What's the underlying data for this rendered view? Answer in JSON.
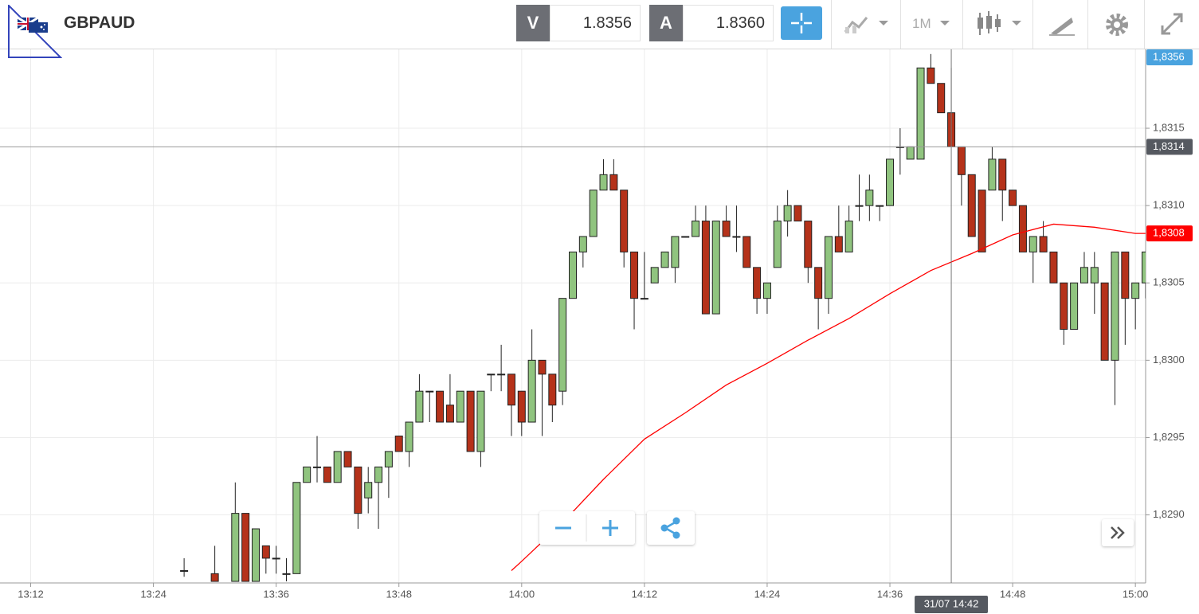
{
  "header": {
    "symbol": "GBPAUD",
    "bid_label": "V",
    "bid": "1.8356",
    "ask_label": "A",
    "ask": "1.8360",
    "timeframe": "1M"
  },
  "chart_data": {
    "type": "candlestick",
    "x": [
      "13:27",
      "13:30",
      "13:32",
      "13:33",
      "13:34",
      "13:35",
      "13:36",
      "13:37",
      "13:38",
      "13:39",
      "13:40",
      "13:41",
      "13:42",
      "13:43",
      "13:44",
      "13:45",
      "13:46",
      "13:47",
      "13:48",
      "13:49",
      "13:50",
      "13:51",
      "13:52",
      "13:53",
      "13:54",
      "13:55",
      "13:56",
      "13:57",
      "13:58",
      "13:59",
      "14:00",
      "14:01",
      "14:02",
      "14:03",
      "14:04",
      "14:05",
      "14:06",
      "14:07",
      "14:08",
      "14:09",
      "14:10",
      "14:11",
      "14:12",
      "14:13",
      "14:14",
      "14:15",
      "14:16",
      "14:17",
      "14:18",
      "14:19",
      "14:20",
      "14:21",
      "14:22",
      "14:23",
      "14:24",
      "14:25",
      "14:26",
      "14:27",
      "14:28",
      "14:29",
      "14:30",
      "14:31",
      "14:32",
      "14:33",
      "14:34",
      "14:35",
      "14:36",
      "14:37",
      "14:38",
      "14:39",
      "14:40",
      "14:41",
      "14:42",
      "14:43",
      "14:44",
      "14:45",
      "14:46",
      "14:47",
      "14:48",
      "14:49",
      "14:50",
      "14:51",
      "14:52",
      "14:53",
      "14:54",
      "14:55",
      "14:56",
      "14:57",
      "14:58",
      "14:59",
      "15:00",
      "15:01"
    ],
    "open": [
      1.82864,
      1.82862,
      1.82857,
      1.82901,
      1.82857,
      1.8288,
      1.82872,
      1.82862,
      1.82862,
      1.82921,
      1.82931,
      1.82931,
      1.82921,
      1.82941,
      1.82931,
      1.82911,
      1.82921,
      1.82931,
      1.82951,
      1.82941,
      1.8296,
      1.8298,
      1.8298,
      1.82971,
      1.8296,
      1.8298,
      1.82941,
      1.82991,
      1.82991,
      1.82991,
      1.8298,
      1.8296,
      1.83,
      1.82991,
      1.8298,
      1.8304,
      1.8307,
      1.8308,
      1.8311,
      1.8312,
      1.8311,
      1.8307,
      1.8304,
      1.8305,
      1.8306,
      1.8306,
      1.8308,
      1.8308,
      1.8309,
      1.8303,
      1.8309,
      1.8308,
      1.8308,
      1.8306,
      1.8304,
      1.8306,
      1.8309,
      1.831,
      1.8309,
      1.8306,
      1.8304,
      1.8308,
      1.8307,
      1.831,
      1.831,
      1.831,
      1.831,
      1.83138,
      1.8313,
      1.8313,
      1.83189,
      1.83179,
      1.8316,
      1.83138,
      1.8312,
      1.8311,
      1.8311,
      1.8313,
      1.8311,
      1.831,
      1.8307,
      1.8308,
      1.8307,
      1.8305,
      1.8302,
      1.8305,
      1.8305,
      1.8305,
      1.83,
      1.8307,
      1.8304,
      1.8305
    ],
    "high": [
      1.82872,
      1.8288,
      1.82921,
      1.82901,
      1.82891,
      1.8288,
      1.8288,
      1.82872,
      1.82921,
      1.82931,
      1.82951,
      1.82931,
      1.82941,
      1.82941,
      1.82931,
      1.82931,
      1.82931,
      1.82941,
      1.82951,
      1.8296,
      1.82991,
      1.8298,
      1.8298,
      1.82991,
      1.8298,
      1.8298,
      1.8298,
      1.82991,
      1.8301,
      1.82991,
      1.8298,
      1.8302,
      1.83,
      1.82991,
      1.8304,
      1.8307,
      1.8308,
      1.8311,
      1.8313,
      1.8313,
      1.8311,
      1.8307,
      1.8307,
      1.8306,
      1.8307,
      1.8308,
      1.8308,
      1.831,
      1.831,
      1.8309,
      1.831,
      1.831,
      1.8308,
      1.8306,
      1.8305,
      1.831,
      1.8311,
      1.831,
      1.8309,
      1.8306,
      1.8308,
      1.831,
      1.831,
      1.8312,
      1.8312,
      1.831,
      1.8313,
      1.8315,
      1.83138,
      1.83189,
      1.83198,
      1.83179,
      1.83189,
      1.83138,
      1.8312,
      1.8311,
      1.83138,
      1.8313,
      1.8311,
      1.831,
      1.8308,
      1.8309,
      1.8307,
      1.8305,
      1.8305,
      1.8307,
      1.8307,
      1.8305,
      1.8307,
      1.8307,
      1.8305,
      1.8307
    ],
    "low": [
      1.8286,
      1.82857,
      1.82857,
      1.82857,
      1.82857,
      1.82862,
      1.82862,
      1.82857,
      1.82862,
      1.82921,
      1.82921,
      1.82921,
      1.82921,
      1.82931,
      1.82891,
      1.82901,
      1.82891,
      1.82911,
      1.82941,
      1.82931,
      1.8296,
      1.8296,
      1.8296,
      1.8296,
      1.8296,
      1.82941,
      1.82931,
      1.8298,
      1.8298,
      1.82951,
      1.82951,
      1.8296,
      1.82951,
      1.8296,
      1.82971,
      1.8304,
      1.8306,
      1.8308,
      1.8311,
      1.8311,
      1.8306,
      1.8302,
      1.8304,
      1.8305,
      1.8306,
      1.8305,
      1.8308,
      1.8308,
      1.8303,
      1.8303,
      1.8308,
      1.8307,
      1.8306,
      1.8303,
      1.8303,
      1.8306,
      1.8308,
      1.8309,
      1.8305,
      1.8302,
      1.8303,
      1.8307,
      1.8307,
      1.8309,
      1.8309,
      1.8309,
      1.831,
      1.8312,
      1.8313,
      1.8313,
      1.83179,
      1.8316,
      1.83138,
      1.831,
      1.8308,
      1.8307,
      1.8311,
      1.8309,
      1.831,
      1.8307,
      1.8305,
      1.8307,
      1.8305,
      1.8301,
      1.8302,
      1.8305,
      1.8303,
      1.83,
      1.82971,
      1.8301,
      1.8302,
      1.8304
    ],
    "close": [
      1.82864,
      1.82857,
      1.82901,
      1.82857,
      1.82891,
      1.82872,
      1.82872,
      1.82862,
      1.82921,
      1.82931,
      1.82931,
      1.82921,
      1.82941,
      1.82931,
      1.82901,
      1.82921,
      1.82931,
      1.82941,
      1.82941,
      1.8296,
      1.8298,
      1.8298,
      1.8296,
      1.8296,
      1.8298,
      1.82941,
      1.8298,
      1.82991,
      1.82991,
      1.82971,
      1.8296,
      1.83,
      1.82991,
      1.82971,
      1.8304,
      1.8307,
      1.8308,
      1.8311,
      1.8312,
      1.8311,
      1.8307,
      1.8304,
      1.8304,
      1.8306,
      1.8307,
      1.8308,
      1.8308,
      1.8309,
      1.8303,
      1.8309,
      1.8308,
      1.8308,
      1.8306,
      1.8304,
      1.8305,
      1.8309,
      1.831,
      1.8309,
      1.8306,
      1.8304,
      1.8308,
      1.8307,
      1.8309,
      1.831,
      1.8311,
      1.831,
      1.8313,
      1.83138,
      1.83138,
      1.83189,
      1.83179,
      1.8316,
      1.83138,
      1.8312,
      1.8308,
      1.8307,
      1.8313,
      1.8311,
      1.831,
      1.8307,
      1.8308,
      1.8307,
      1.8305,
      1.8302,
      1.8305,
      1.8306,
      1.8306,
      1.83,
      1.8307,
      1.8304,
      1.8305,
      1.8307
    ],
    "up_color": "#90c47f",
    "down_color": "#b5321a",
    "overlay": {
      "type": "line",
      "color": "#ff0000",
      "x": [
        "13:59",
        "14:00",
        "14:04",
        "14:08",
        "14:12",
        "14:16",
        "14:20",
        "14:24",
        "14:28",
        "14:32",
        "14:36",
        "14:40",
        "14:44",
        "14:48",
        "14:52",
        "14:56",
        "15:00",
        "15:01"
      ],
      "values": [
        1.82864,
        1.8287,
        1.82895,
        1.82923,
        1.82949,
        1.82966,
        1.82984,
        1.82998,
        1.83013,
        1.83027,
        1.83043,
        1.83058,
        1.83069,
        1.83081,
        1.83088,
        1.83086,
        1.83082,
        1.83082
      ]
    },
    "xlim": [
      "13:09",
      "15:01"
    ],
    "xticks": [
      "13:12",
      "13:24",
      "13:36",
      "13:48",
      "14:00",
      "14:12",
      "14:24",
      "14:36",
      "14:48",
      "15:00"
    ],
    "ylim": [
      1.82856,
      1.83201
    ],
    "yticks": [
      {
        "value": 1.829,
        "label": "1,8290"
      },
      {
        "value": 1.8295,
        "label": "1,8295"
      },
      {
        "value": 1.83,
        "label": "1,8300"
      },
      {
        "value": 1.8305,
        "label": "1,8305"
      },
      {
        "value": 1.831,
        "label": "1,8310"
      },
      {
        "value": 1.8315,
        "label": "1,8315"
      }
    ],
    "grid": true,
    "price_markers": [
      {
        "value": 1.8356,
        "label": "1,8356",
        "color": "#4aa3df"
      },
      {
        "value": 1.83082,
        "label": "1,8308",
        "color": "#ff0000"
      }
    ],
    "crosshair": {
      "x": "14:42",
      "label": "31/07 14:42",
      "price": {
        "value": 1.83138,
        "label": "1,8314"
      }
    }
  }
}
